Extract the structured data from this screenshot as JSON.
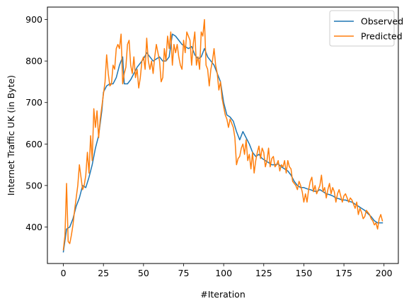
{
  "chart_data": {
    "type": "line",
    "xlabel": "#Iteration",
    "ylabel": "Internet Traffic UK (in Byte)",
    "xlim": [
      -9.95,
      208.95
    ],
    "ylim": [
      312,
      930
    ],
    "xticks": [
      0,
      25,
      50,
      75,
      100,
      125,
      150,
      175,
      200
    ],
    "yticks": [
      400,
      500,
      600,
      700,
      800,
      900
    ],
    "grid": false,
    "legend_placement": "top-right",
    "series": [
      {
        "name": "Observed",
        "color": "#1f77b4",
        "points": [
          [
            0,
            340
          ],
          [
            2,
            395
          ],
          [
            4,
            400
          ],
          [
            6,
            420
          ],
          [
            8,
            450
          ],
          [
            10,
            470
          ],
          [
            12,
            500
          ],
          [
            14,
            495
          ],
          [
            16,
            520
          ],
          [
            18,
            550
          ],
          [
            20,
            590
          ],
          [
            22,
            620
          ],
          [
            24,
            680
          ],
          [
            25,
            725
          ],
          [
            27,
            740
          ],
          [
            29,
            745
          ],
          [
            31,
            745
          ],
          [
            33,
            760
          ],
          [
            35,
            790
          ],
          [
            37,
            810
          ],
          [
            38,
            745
          ],
          [
            40,
            745
          ],
          [
            42,
            755
          ],
          [
            44,
            770
          ],
          [
            46,
            785
          ],
          [
            48,
            795
          ],
          [
            50,
            805
          ],
          [
            52,
            820
          ],
          [
            54,
            810
          ],
          [
            56,
            800
          ],
          [
            58,
            805
          ],
          [
            60,
            810
          ],
          [
            62,
            800
          ],
          [
            64,
            800
          ],
          [
            66,
            810
          ],
          [
            68,
            865
          ],
          [
            70,
            860
          ],
          [
            72,
            850
          ],
          [
            74,
            840
          ],
          [
            76,
            835
          ],
          [
            78,
            830
          ],
          [
            80,
            835
          ],
          [
            82,
            815
          ],
          [
            84,
            805
          ],
          [
            86,
            810
          ],
          [
            88,
            830
          ],
          [
            90,
            810
          ],
          [
            92,
            800
          ],
          [
            94,
            790
          ],
          [
            96,
            770
          ],
          [
            98,
            750
          ],
          [
            100,
            700
          ],
          [
            102,
            670
          ],
          [
            104,
            665
          ],
          [
            106,
            655
          ],
          [
            108,
            630
          ],
          [
            110,
            610
          ],
          [
            112,
            630
          ],
          [
            114,
            615
          ],
          [
            116,
            600
          ],
          [
            118,
            580
          ],
          [
            120,
            570
          ],
          [
            122,
            575
          ],
          [
            124,
            565
          ],
          [
            126,
            560
          ],
          [
            128,
            555
          ],
          [
            130,
            550
          ],
          [
            132,
            550
          ],
          [
            134,
            552
          ],
          [
            136,
            545
          ],
          [
            138,
            540
          ],
          [
            140,
            535
          ],
          [
            142,
            525
          ],
          [
            144,
            510
          ],
          [
            146,
            500
          ],
          [
            148,
            495
          ],
          [
            150,
            495
          ],
          [
            152,
            492
          ],
          [
            154,
            490
          ],
          [
            156,
            487
          ],
          [
            158,
            485
          ],
          [
            160,
            490
          ],
          [
            162,
            485
          ],
          [
            164,
            480
          ],
          [
            166,
            478
          ],
          [
            168,
            475
          ],
          [
            170,
            470
          ],
          [
            172,
            468
          ],
          [
            174,
            465
          ],
          [
            176,
            465
          ],
          [
            178,
            462
          ],
          [
            180,
            460
          ],
          [
            182,
            455
          ],
          [
            184,
            450
          ],
          [
            186,
            445
          ],
          [
            188,
            440
          ],
          [
            190,
            432
          ],
          [
            192,
            425
          ],
          [
            194,
            415
          ],
          [
            196,
            410
          ],
          [
            198,
            410
          ],
          [
            199,
            410
          ]
        ]
      },
      {
        "name": "Predicted",
        "color": "#ff7f0e",
        "points": [
          [
            0,
            345
          ],
          [
            1,
            380
          ],
          [
            2,
            505
          ],
          [
            3,
            365
          ],
          [
            4,
            360
          ],
          [
            5,
            380
          ],
          [
            6,
            405
          ],
          [
            7,
            440
          ],
          [
            8,
            470
          ],
          [
            9,
            500
          ],
          [
            10,
            550
          ],
          [
            11,
            520
          ],
          [
            12,
            490
          ],
          [
            13,
            500
          ],
          [
            14,
            525
          ],
          [
            15,
            580
          ],
          [
            16,
            530
          ],
          [
            17,
            620
          ],
          [
            18,
            560
          ],
          [
            19,
            685
          ],
          [
            20,
            640
          ],
          [
            21,
            680
          ],
          [
            22,
            615
          ],
          [
            23,
            660
          ],
          [
            24,
            690
          ],
          [
            25,
            720
          ],
          [
            26,
            750
          ],
          [
            27,
            815
          ],
          [
            28,
            770
          ],
          [
            29,
            740
          ],
          [
            30,
            745
          ],
          [
            31,
            790
          ],
          [
            32,
            780
          ],
          [
            33,
            830
          ],
          [
            34,
            840
          ],
          [
            35,
            830
          ],
          [
            36,
            865
          ],
          [
            37,
            745
          ],
          [
            38,
            770
          ],
          [
            39,
            785
          ],
          [
            40,
            840
          ],
          [
            41,
            850
          ],
          [
            42,
            790
          ],
          [
            43,
            770
          ],
          [
            44,
            810
          ],
          [
            45,
            760
          ],
          [
            46,
            780
          ],
          [
            47,
            735
          ],
          [
            48,
            760
          ],
          [
            49,
            800
          ],
          [
            50,
            810
          ],
          [
            51,
            780
          ],
          [
            52,
            855
          ],
          [
            53,
            800
          ],
          [
            54,
            780
          ],
          [
            55,
            800
          ],
          [
            56,
            770
          ],
          [
            57,
            810
          ],
          [
            58,
            840
          ],
          [
            59,
            820
          ],
          [
            60,
            800
          ],
          [
            61,
            750
          ],
          [
            62,
            760
          ],
          [
            63,
            830
          ],
          [
            64,
            800
          ],
          [
            65,
            860
          ],
          [
            66,
            830
          ],
          [
            67,
            870
          ],
          [
            68,
            790
          ],
          [
            69,
            840
          ],
          [
            70,
            820
          ],
          [
            71,
            840
          ],
          [
            72,
            810
          ],
          [
            73,
            790
          ],
          [
            74,
            780
          ],
          [
            75,
            850
          ],
          [
            76,
            820
          ],
          [
            77,
            870
          ],
          [
            78,
            860
          ],
          [
            79,
            850
          ],
          [
            80,
            790
          ],
          [
            81,
            840
          ],
          [
            82,
            870
          ],
          [
            83,
            790
          ],
          [
            84,
            810
          ],
          [
            85,
            780
          ],
          [
            86,
            870
          ],
          [
            87,
            860
          ],
          [
            88,
            900
          ],
          [
            89,
            790
          ],
          [
            90,
            780
          ],
          [
            91,
            740
          ],
          [
            92,
            780
          ],
          [
            93,
            800
          ],
          [
            94,
            830
          ],
          [
            95,
            790
          ],
          [
            96,
            770
          ],
          [
            97,
            730
          ],
          [
            98,
            750
          ],
          [
            99,
            710
          ],
          [
            100,
            690
          ],
          [
            101,
            670
          ],
          [
            102,
            660
          ],
          [
            103,
            640
          ],
          [
            104,
            660
          ],
          [
            105,
            650
          ],
          [
            106,
            640
          ],
          [
            107,
            615
          ],
          [
            108,
            550
          ],
          [
            109,
            565
          ],
          [
            110,
            570
          ],
          [
            111,
            590
          ],
          [
            112,
            600
          ],
          [
            113,
            575
          ],
          [
            114,
            610
          ],
          [
            115,
            560
          ],
          [
            116,
            575
          ],
          [
            117,
            540
          ],
          [
            118,
            580
          ],
          [
            119,
            530
          ],
          [
            120,
            560
          ],
          [
            121,
            580
          ],
          [
            122,
            595
          ],
          [
            123,
            565
          ],
          [
            124,
            590
          ],
          [
            125,
            580
          ],
          [
            126,
            545
          ],
          [
            127,
            560
          ],
          [
            128,
            590
          ],
          [
            129,
            545
          ],
          [
            130,
            565
          ],
          [
            131,
            570
          ],
          [
            132,
            545
          ],
          [
            133,
            550
          ],
          [
            134,
            560
          ],
          [
            135,
            535
          ],
          [
            136,
            550
          ],
          [
            137,
            545
          ],
          [
            138,
            560
          ],
          [
            139,
            530
          ],
          [
            140,
            560
          ],
          [
            141,
            545
          ],
          [
            142,
            540
          ],
          [
            143,
            510
          ],
          [
            144,
            505
          ],
          [
            145,
            500
          ],
          [
            146,
            490
          ],
          [
            147,
            510
          ],
          [
            148,
            500
          ],
          [
            149,
            485
          ],
          [
            150,
            460
          ],
          [
            151,
            480
          ],
          [
            152,
            460
          ],
          [
            153,
            490
          ],
          [
            154,
            510
          ],
          [
            155,
            520
          ],
          [
            156,
            485
          ],
          [
            157,
            500
          ],
          [
            158,
            480
          ],
          [
            159,
            490
          ],
          [
            160,
            500
          ],
          [
            161,
            525
          ],
          [
            162,
            485
          ],
          [
            163,
            495
          ],
          [
            164,
            470
          ],
          [
            165,
            490
          ],
          [
            166,
            505
          ],
          [
            167,
            480
          ],
          [
            168,
            495
          ],
          [
            169,
            485
          ],
          [
            170,
            460
          ],
          [
            171,
            480
          ],
          [
            172,
            490
          ],
          [
            173,
            475
          ],
          [
            174,
            460
          ],
          [
            175,
            475
          ],
          [
            176,
            480
          ],
          [
            177,
            470
          ],
          [
            178,
            460
          ],
          [
            179,
            470
          ],
          [
            180,
            465
          ],
          [
            181,
            455
          ],
          [
            182,
            445
          ],
          [
            183,
            460
          ],
          [
            184,
            430
          ],
          [
            185,
            445
          ],
          [
            186,
            435
          ],
          [
            187,
            420
          ],
          [
            188,
            425
          ],
          [
            189,
            440
          ],
          [
            190,
            435
          ],
          [
            191,
            430
          ],
          [
            192,
            420
          ],
          [
            193,
            415
          ],
          [
            194,
            405
          ],
          [
            195,
            410
          ],
          [
            196,
            395
          ],
          [
            197,
            420
          ],
          [
            198,
            430
          ],
          [
            199,
            415
          ]
        ]
      }
    ]
  }
}
